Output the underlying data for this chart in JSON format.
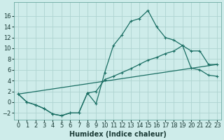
{
  "xlabel": "Humidex (Indice chaleur)",
  "background_color": "#ceecea",
  "grid_color": "#aed4d0",
  "line_color": "#1a6e63",
  "xlim": [
    -0.5,
    23.5
  ],
  "ylim": [
    -3.2,
    18.5
  ],
  "xticks": [
    0,
    1,
    2,
    3,
    4,
    5,
    6,
    7,
    8,
    9,
    10,
    11,
    12,
    13,
    14,
    15,
    16,
    17,
    18,
    19,
    20,
    21,
    22,
    23
  ],
  "yticks": [
    -2,
    0,
    2,
    4,
    6,
    8,
    10,
    12,
    14,
    16
  ],
  "line1_x": [
    0,
    1,
    2,
    3,
    4,
    5,
    6,
    7,
    8,
    9,
    10,
    11,
    12,
    13,
    14,
    15,
    16,
    17,
    18,
    19,
    20,
    21,
    22,
    23
  ],
  "line1_y": [
    1.5,
    0.0,
    -0.5,
    -1.2,
    -2.2,
    -2.5,
    -2.0,
    -2.0,
    1.7,
    -0.3,
    5.5,
    10.5,
    12.5,
    15.0,
    15.5,
    17.0,
    14.0,
    12.0,
    11.5,
    10.5,
    9.5,
    9.5,
    7.0,
    7.0
  ],
  "line2_x": [
    0,
    1,
    2,
    3,
    4,
    5,
    6,
    7,
    8,
    9,
    10,
    11,
    12,
    13,
    14,
    15,
    16,
    17,
    18,
    19,
    20,
    21,
    22,
    23
  ],
  "line2_y": [
    1.5,
    0.0,
    -0.5,
    -1.2,
    -2.2,
    -2.5,
    -2.0,
    -2.0,
    1.7,
    2.0,
    4.2,
    4.8,
    5.5,
    6.2,
    7.0,
    7.8,
    8.3,
    9.0,
    9.5,
    10.5,
    6.3,
    6.0,
    5.0,
    4.8
  ],
  "line3_x": [
    0,
    23
  ],
  "line3_y": [
    1.5,
    7.0
  ],
  "tick_fontsize": 6,
  "label_fontsize": 7
}
